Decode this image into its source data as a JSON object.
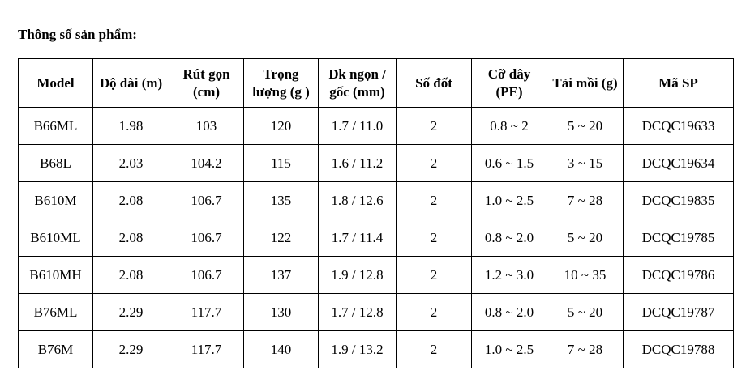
{
  "heading": "Thông số sản phẩm:",
  "table": {
    "headers": [
      {
        "line1": "Model",
        "line2": ""
      },
      {
        "line1": "Độ dài (m)",
        "line2": ""
      },
      {
        "line1": "Rút gọn",
        "line2": "(cm)"
      },
      {
        "line1": "Trọng",
        "line2": "lượng (g )"
      },
      {
        "line1": "Đk ngọn /",
        "line2": "gốc (mm)"
      },
      {
        "line1": "Số đốt",
        "line2": ""
      },
      {
        "line1": "Cỡ dây",
        "line2": "(PE)"
      },
      {
        "line1": "Tải mồi (g)",
        "line2": ""
      },
      {
        "line1": "Mã SP",
        "line2": ""
      }
    ],
    "rows": [
      [
        "B66ML",
        "1.98",
        "103",
        "120",
        "1.7 / 11.0",
        "2",
        "0.8 ~ 2",
        "5 ~ 20",
        "DCQC19633"
      ],
      [
        "B68L",
        "2.03",
        "104.2",
        "115",
        "1.6 / 11.2",
        "2",
        "0.6 ~ 1.5",
        "3 ~ 15",
        "DCQC19634"
      ],
      [
        "B610M",
        "2.08",
        "106.7",
        "135",
        "1.8 / 12.6",
        "2",
        "1.0 ~ 2.5",
        "7 ~ 28",
        "DCQC19835"
      ],
      [
        "B610ML",
        "2.08",
        "106.7",
        "122",
        "1.7 / 11.4",
        "2",
        "0.8 ~ 2.0",
        "5 ~ 20",
        "DCQC19785"
      ],
      [
        "B610MH",
        "2.08",
        "106.7",
        "137",
        "1.9 / 12.8",
        "2",
        "1.2 ~ 3.0",
        "10 ~ 35",
        "DCQC19786"
      ],
      [
        "B76ML",
        "2.29",
        "117.7",
        "130",
        "1.7 / 12.8",
        "2",
        "0.8 ~ 2.0",
        "5 ~ 20",
        "DCQC19787"
      ],
      [
        "B76M",
        "2.29",
        "117.7",
        "140",
        "1.9 / 13.2",
        "2",
        "1.0 ~ 2.5",
        "7 ~ 28",
        "DCQC19788"
      ]
    ]
  }
}
